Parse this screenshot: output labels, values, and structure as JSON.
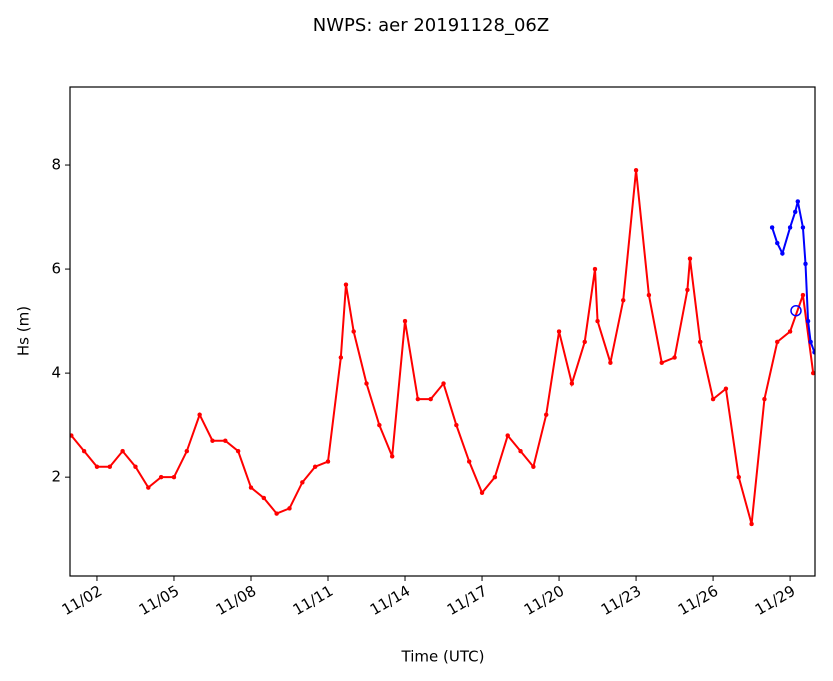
{
  "chart_data": {
    "type": "line",
    "title": "NWPS: aer 20191128_06Z",
    "x_label": "Time (UTC)",
    "y_label": "Hs (m)",
    "xlim": [
      0.95,
      29.97
    ],
    "ylim": [
      0.1,
      9.5
    ],
    "xticks": [
      {
        "value": 2,
        "label": "11/02"
      },
      {
        "value": 5,
        "label": "11/05"
      },
      {
        "value": 8,
        "label": "11/08"
      },
      {
        "value": 11,
        "label": "11/11"
      },
      {
        "value": 14,
        "label": "11/14"
      },
      {
        "value": 17,
        "label": "11/17"
      },
      {
        "value": 20,
        "label": "11/20"
      },
      {
        "value": 23,
        "label": "11/23"
      },
      {
        "value": 26,
        "label": "11/26"
      },
      {
        "value": 29,
        "label": "11/29"
      }
    ],
    "yticks": [
      2,
      4,
      6,
      8
    ],
    "series": [
      {
        "color": "#ff0000",
        "marker": "dot",
        "x": [
          1.0,
          1.5,
          2.0,
          2.5,
          3.0,
          3.5,
          4.0,
          4.5,
          5.0,
          5.5,
          6.0,
          6.5,
          7.0,
          7.5,
          8.0,
          8.5,
          9.0,
          9.5,
          10.0,
          10.5,
          11.0,
          11.5,
          11.7,
          12.0,
          12.5,
          13.0,
          13.5,
          14.0,
          14.5,
          15.0,
          15.5,
          16.0,
          16.5,
          17.0,
          17.5,
          18.0,
          18.5,
          19.0,
          19.5,
          20.0,
          20.5,
          21.0,
          21.4,
          21.5,
          22.0,
          22.5,
          23.0,
          23.5,
          24.0,
          24.5,
          25.0,
          25.1,
          25.5,
          26.0,
          26.5,
          27.0,
          27.5,
          28.0,
          28.5,
          29.0,
          29.5,
          29.9
        ],
        "values": [
          2.8,
          2.5,
          2.2,
          2.2,
          2.5,
          2.2,
          1.8,
          2.0,
          2.0,
          2.5,
          3.2,
          2.7,
          2.7,
          2.5,
          1.8,
          1.6,
          1.3,
          1.4,
          1.9,
          2.2,
          2.3,
          4.3,
          5.7,
          4.8,
          3.8,
          3.0,
          2.4,
          5.0,
          3.5,
          3.5,
          3.8,
          3.0,
          2.3,
          1.7,
          2.0,
          2.8,
          2.5,
          2.2,
          3.2,
          4.8,
          3.8,
          4.6,
          6.0,
          5.0,
          4.2,
          5.4,
          7.9,
          5.5,
          4.2,
          4.3,
          5.6,
          6.2,
          4.6,
          3.5,
          3.7,
          2.0,
          1.1,
          3.5,
          4.6,
          4.8,
          5.5,
          4.0
        ]
      },
      {
        "color": "#0000ff",
        "marker": "dot",
        "x": [
          28.3,
          28.5,
          28.7,
          29.0,
          29.2,
          29.3,
          29.5,
          29.6,
          29.7,
          29.8,
          29.95
        ],
        "values": [
          6.8,
          6.5,
          6.3,
          6.8,
          7.1,
          7.3,
          6.8,
          6.1,
          5.0,
          4.6,
          4.4
        ]
      },
      {
        "color": "#0000ff",
        "marker": "open-circle",
        "x": [
          29.23
        ],
        "values": [
          5.2
        ]
      }
    ]
  }
}
